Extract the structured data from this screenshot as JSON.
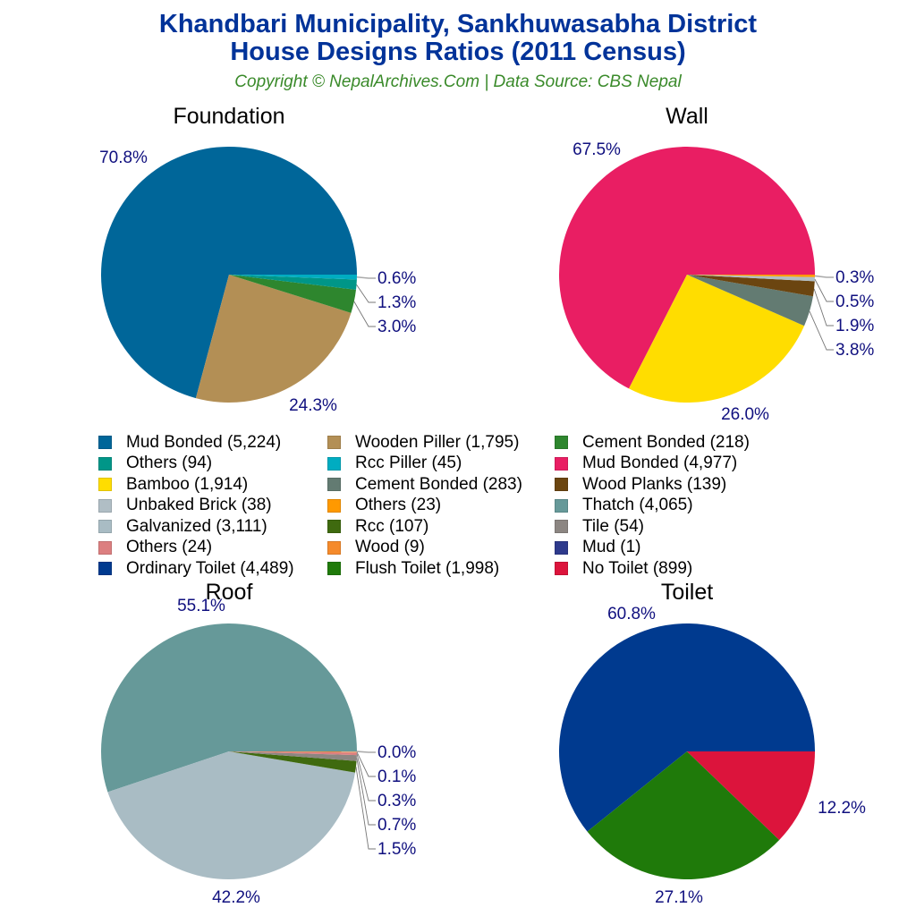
{
  "header": {
    "title_line1": "Khandbari Municipality, Sankhuwasabha District",
    "title_line2": "House Designs Ratios (2011 Census)",
    "subtitle": "Copyright © NepalArchives.Com | Data Source: CBS Nepal"
  },
  "legend": [
    {
      "label": "Mud Bonded (5,224)",
      "color": "#006699"
    },
    {
      "label": "Wooden Piller (1,795)",
      "color": "#b38f55"
    },
    {
      "label": "Cement Bonded (218)",
      "color": "#2e862e"
    },
    {
      "label": "Others (94)",
      "color": "#009688"
    },
    {
      "label": "Rcc Piller (45)",
      "color": "#00acc1"
    },
    {
      "label": "Mud Bonded (4,977)",
      "color": "#e91e63"
    },
    {
      "label": "Bamboo (1,914)",
      "color": "#ffdd00"
    },
    {
      "label": "Cement Bonded (283)",
      "color": "#637b72"
    },
    {
      "label": "Wood Planks (139)",
      "color": "#6b4510"
    },
    {
      "label": "Unbaked Brick (38)",
      "color": "#b0bec5"
    },
    {
      "label": "Others (23)",
      "color": "#ff9900"
    },
    {
      "label": "Thatch (4,065)",
      "color": "#669999"
    },
    {
      "label": "Galvanized (3,111)",
      "color": "#a9bcc4"
    },
    {
      "label": "Rcc (107)",
      "color": "#3f6a0f"
    },
    {
      "label": "Tile (54)",
      "color": "#8c8682"
    },
    {
      "label": "Others (24)",
      "color": "#dc7f80"
    },
    {
      "label": "Wood (9)",
      "color": "#f58a2b"
    },
    {
      "label": "Mud (1)",
      "color": "#2e3a8c"
    },
    {
      "label": "Ordinary Toilet (4,489)",
      "color": "#003a8f"
    },
    {
      "label": "Flush Toilet (1,998)",
      "color": "#1f7a0a"
    },
    {
      "label": "No Toilet (899)",
      "color": "#dc143c"
    }
  ],
  "chart_data": [
    {
      "type": "pie",
      "title": "Foundation",
      "categories": [
        "Mud Bonded",
        "Wooden Piller",
        "Cement Bonded",
        "Others",
        "Rcc Piller"
      ],
      "values": [
        5224,
        1795,
        218,
        94,
        45
      ],
      "percent_labels": [
        "70.8%",
        "24.3%",
        "3.0%",
        "1.3%",
        "0.6%"
      ],
      "colors": [
        "#006699",
        "#b38f55",
        "#2e862e",
        "#009688",
        "#00acc1"
      ]
    },
    {
      "type": "pie",
      "title": "Wall",
      "categories": [
        "Mud Bonded",
        "Bamboo",
        "Cement Bonded",
        "Wood Planks",
        "Unbaked Brick",
        "Others"
      ],
      "values": [
        4977,
        1914,
        283,
        139,
        38,
        23
      ],
      "percent_labels": [
        "67.5%",
        "26.0%",
        "3.8%",
        "1.9%",
        "0.5%",
        "0.3%"
      ],
      "colors": [
        "#e91e63",
        "#ffdd00",
        "#637b72",
        "#6b4510",
        "#b0bec5",
        "#ff9900"
      ]
    },
    {
      "type": "pie",
      "title": "Roof",
      "categories": [
        "Thatch",
        "Galvanized",
        "Rcc",
        "Tile",
        "Others",
        "Wood",
        "Mud"
      ],
      "values": [
        4065,
        3111,
        107,
        54,
        24,
        9,
        1
      ],
      "percent_labels": [
        "55.1%",
        "42.2%",
        "1.5%",
        "0.7%",
        "0.3%",
        "0.1%",
        "0.0%"
      ],
      "colors": [
        "#669999",
        "#a9bcc4",
        "#3f6a0f",
        "#8c8682",
        "#dc7f80",
        "#f58a2b",
        "#2e3a8c"
      ]
    },
    {
      "type": "pie",
      "title": "Toilet",
      "categories": [
        "Ordinary Toilet",
        "Flush Toilet",
        "No Toilet"
      ],
      "values": [
        4489,
        1998,
        899
      ],
      "percent_labels": [
        "60.8%",
        "27.1%",
        "12.2%"
      ],
      "colors": [
        "#003a8f",
        "#1f7a0a",
        "#dc143c"
      ]
    }
  ]
}
